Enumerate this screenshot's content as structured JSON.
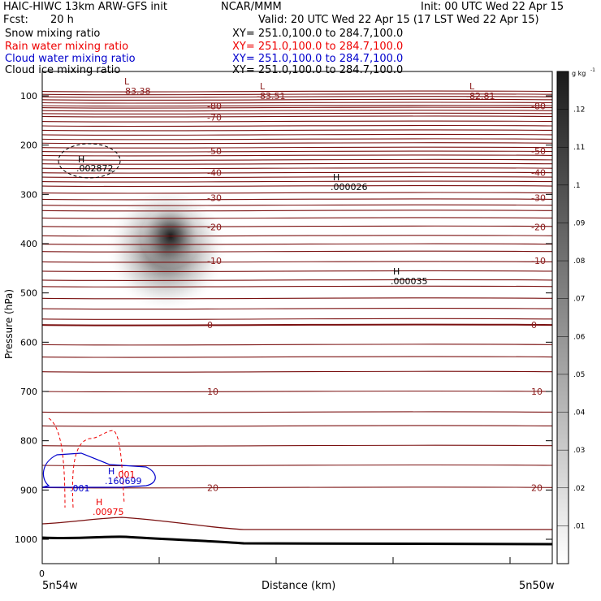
{
  "header": {
    "title": "HAIC-HIWC 13km ARW-GFS init",
    "org": "NCAR/MMM",
    "init": "Init: 00 UTC Wed 22 Apr 15",
    "fcst_label": "Fcst:",
    "fcst_value": "20 h",
    "valid": "Valid: 20 UTC Wed 22 Apr 15 (17 LST Wed 22 Apr 15)"
  },
  "fields": [
    {
      "name": "Snow mixing ratio",
      "xy": "XY= 251.0,100.0 to 284.7,100.0",
      "color": "#000000"
    },
    {
      "name": "Rain water mixing ratio",
      "xy": "XY= 251.0,100.0 to 284.7,100.0",
      "color": "#ee0000"
    },
    {
      "name": "Cloud water mixing ratio",
      "xy": "XY= 251.0,100.0 to 284.7,100.0",
      "color": "#0000cc"
    },
    {
      "name": "Cloud ice mixing ratio",
      "xy": "XY= 251.0,100.0 to 284.7,100.0",
      "color": "#000000"
    }
  ],
  "chart_data": {
    "type": "cross-section",
    "ylabel": "Pressure (hPa)",
    "xlabel": "Distance (km)",
    "x_left_label": "5n54w",
    "x_right_label": "5n50w",
    "x_tick_label": "0",
    "y_ticks": [
      100,
      200,
      300,
      400,
      500,
      600,
      700,
      800,
      900,
      1000
    ],
    "ylim": [
      1050,
      50
    ],
    "colorbar": {
      "unit_label": "g kg",
      "unit_exp": "-1",
      "ticks": [
        ".01",
        ".02",
        ".03",
        ".04",
        ".05",
        ".06",
        ".07",
        ".08",
        ".09",
        ".1",
        ".11",
        ".12"
      ],
      "range": [
        0,
        0.13
      ]
    },
    "temperature_labels": [
      {
        "value": "-80",
        "p": 121
      },
      {
        "value": "-70",
        "p": 144
      },
      {
        "value": "-50",
        "p": 212
      },
      {
        "value": "-40",
        "p": 256
      },
      {
        "value": "-30",
        "p": 307
      },
      {
        "value": "-20",
        "p": 366
      },
      {
        "value": "-10",
        "p": 435
      },
      {
        "value": "0",
        "p": 565
      },
      {
        "value": "10",
        "p": 700
      },
      {
        "value": "20",
        "p": 895
      }
    ],
    "extrema": [
      {
        "kind": "L",
        "value": "-83.38",
        "color": "#8b1a1a"
      },
      {
        "kind": "L",
        "value": "-83.51",
        "color": "#8b1a1a"
      },
      {
        "kind": "L",
        "value": "-82.81",
        "color": "#8b1a1a"
      },
      {
        "kind": "H",
        "value": ".002872",
        "color": "#000000"
      },
      {
        "kind": "H",
        "value": ".000026",
        "color": "#000000"
      },
      {
        "kind": "H",
        "value": ".000035",
        "color": "#000000"
      },
      {
        "kind": "H",
        "value": ".160699",
        "color": "#0000cc"
      },
      {
        "kind": "H",
        "value": ".00975",
        "color": "#ee0000"
      }
    ],
    "contour_labels": [
      {
        "value": ".001",
        "color": "#ee0000"
      },
      {
        "value": ".001",
        "color": "#0000cc"
      }
    ]
  }
}
